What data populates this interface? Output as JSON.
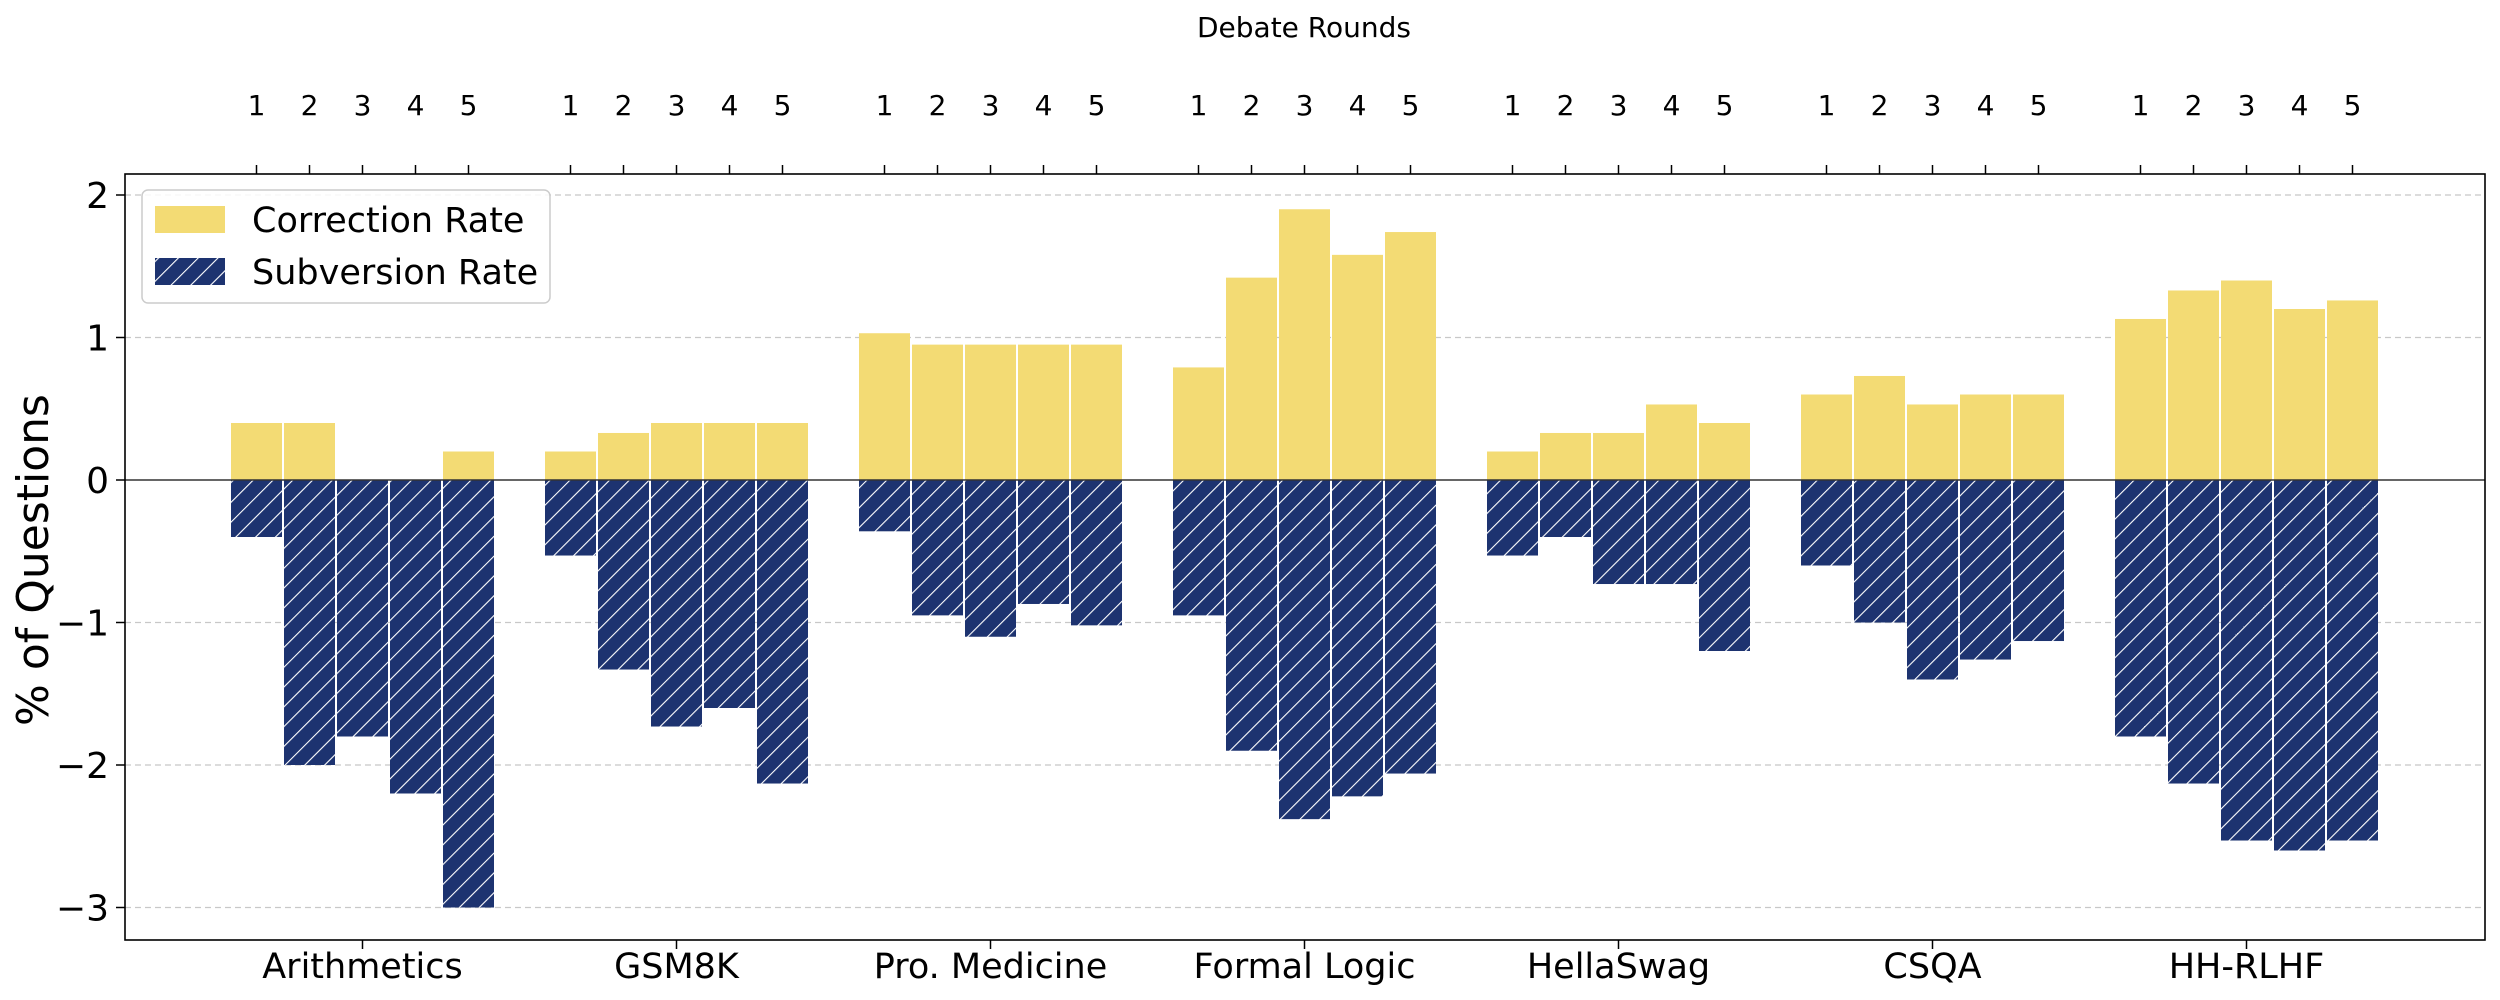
{
  "chart_data": {
    "type": "bar",
    "top_axis_title": "Debate Rounds",
    "ylabel": "% of Questions",
    "xlabel": "",
    "ylim": [
      -3.25,
      2.15
    ],
    "yticks": [
      -3,
      -2,
      -1,
      0,
      1,
      2
    ],
    "ytick_labels": [
      "−3",
      "−2",
      "−1",
      "0",
      "1",
      "2"
    ],
    "grid": "y-dashed",
    "legend_placement": "top-left",
    "rounds": [
      "1",
      "2",
      "3",
      "4",
      "5"
    ],
    "categories": [
      "Arithmetics",
      "GSM8K",
      "Pro. Medicine",
      "Formal Logic",
      "HellaSwag",
      "CSQA",
      "HH-RLHF"
    ],
    "series": [
      {
        "name": "Correction Rate",
        "color": "#f3db74",
        "pattern": "solid",
        "values": [
          [
            0.4,
            0.4,
            0.0,
            0.0,
            0.2
          ],
          [
            0.2,
            0.33,
            0.4,
            0.4,
            0.4
          ],
          [
            1.03,
            0.95,
            0.95,
            0.95,
            0.95
          ],
          [
            0.79,
            1.42,
            1.9,
            1.58,
            1.74
          ],
          [
            0.2,
            0.33,
            0.33,
            0.53,
            0.4
          ],
          [
            0.6,
            0.73,
            0.53,
            0.6,
            0.6
          ],
          [
            1.13,
            1.33,
            1.4,
            1.2,
            1.26
          ]
        ]
      },
      {
        "name": "Subversion Rate",
        "color": "#1d3370",
        "pattern": "hatch",
        "values": [
          [
            -0.4,
            -2.0,
            -1.8,
            -2.2,
            -3.0
          ],
          [
            -0.53,
            -1.33,
            -1.73,
            -1.6,
            -2.13
          ],
          [
            -0.36,
            -0.95,
            -1.1,
            -0.87,
            -1.02
          ],
          [
            -0.95,
            -1.9,
            -2.38,
            -2.22,
            -2.06
          ],
          [
            -0.53,
            -0.4,
            -0.73,
            -0.73,
            -1.2
          ],
          [
            -0.6,
            -1.0,
            -1.4,
            -1.26,
            -1.13
          ],
          [
            -1.8,
            -2.13,
            -2.53,
            -2.6,
            -2.53
          ]
        ]
      }
    ]
  }
}
